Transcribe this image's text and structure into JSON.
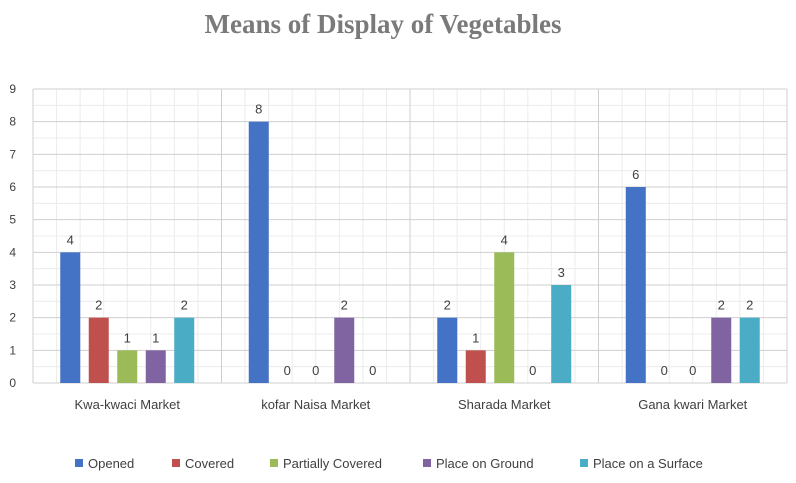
{
  "chart_data": {
    "type": "bar",
    "title": "Means of Display of Vegetables",
    "xlabel": "",
    "ylabel": "",
    "ylim": [
      0,
      9
    ],
    "yticks": [
      0,
      1,
      2,
      3,
      4,
      5,
      6,
      7,
      8,
      9
    ],
    "grid": true,
    "legend_position": "bottom",
    "categories": [
      "Kwa-kwaci Market",
      "kofar Naisa Market",
      "Sharada Market",
      "Gana kwari Market"
    ],
    "series": [
      {
        "name": "Opened",
        "color": "#4472c4",
        "values": [
          4,
          8,
          2,
          6
        ]
      },
      {
        "name": "Covered",
        "color": "#c0504d",
        "values": [
          2,
          0,
          1,
          0
        ]
      },
      {
        "name": "Partially Covered",
        "color": "#9bbb59",
        "values": [
          1,
          0,
          4,
          0
        ]
      },
      {
        "name": "Place on Ground",
        "color": "#8064a2",
        "values": [
          1,
          2,
          0,
          2
        ]
      },
      {
        "name": "Place on a Surface",
        "color": "#4bacc6",
        "values": [
          2,
          0,
          3,
          2
        ]
      }
    ]
  }
}
